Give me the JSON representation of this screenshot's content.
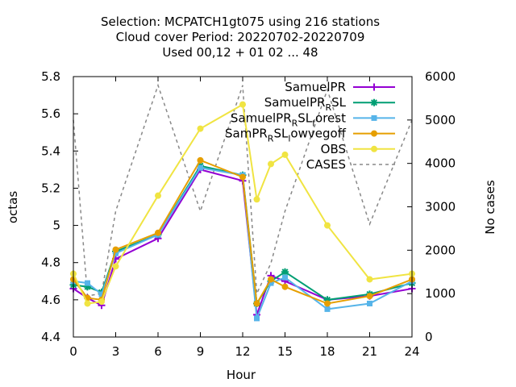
{
  "chart_data": {
    "type": "line",
    "title_lines": [
      "Selection: MCPATCH1gt075 using   216 stations",
      "Cloud cover   Period: 20220702-20220709",
      "Used  00,12  + 01 02 ... 48"
    ],
    "xlabel": "Hour",
    "ylabel": "octas",
    "y2label": "No cases",
    "xlim": [
      0,
      24
    ],
    "ylim": [
      4.4,
      5.8
    ],
    "y2lim": [
      0,
      6000
    ],
    "xticks": [
      "0",
      "3",
      "6",
      "9",
      "12",
      "15",
      "18",
      "21",
      "24"
    ],
    "yticks": [
      "4.4",
      "4.6",
      "4.8",
      "5",
      "5.2",
      "5.4",
      "5.6",
      "5.8"
    ],
    "y2ticks": [
      "0",
      "1000",
      "2000",
      "3000",
      "4000",
      "5000",
      "6000"
    ],
    "legend_position": "top-right",
    "series": [
      {
        "name": "SamuelPR",
        "legend": {
          "base": "SamuelPR",
          "parts": []
        },
        "color": "#9400d3",
        "marker": "plus",
        "x": [
          0,
          1,
          2,
          3,
          6,
          9,
          12,
          13,
          14,
          15,
          18,
          21,
          24
        ],
        "y": [
          4.66,
          4.61,
          4.57,
          4.82,
          4.93,
          5.3,
          5.24,
          4.52,
          4.73,
          4.7,
          4.6,
          4.62,
          4.66
        ]
      },
      {
        "name": "SamuelPR_RSL",
        "legend": {
          "base": "SamuelPR",
          "parts": [
            {
              "sub": "R"
            },
            {
              "text": "SL"
            }
          ]
        },
        "color": "#009e73",
        "marker": "star",
        "x": [
          0,
          1,
          2,
          3,
          6,
          9,
          12,
          13,
          14,
          15,
          18,
          21,
          24
        ],
        "y": [
          4.68,
          4.67,
          4.64,
          4.86,
          4.95,
          5.32,
          5.27,
          4.58,
          4.7,
          4.75,
          4.6,
          4.63,
          4.69
        ]
      },
      {
        "name": "SamuelPR_RSL_forest",
        "legend": {
          "base": "SamuelPR",
          "parts": [
            {
              "sub": "R"
            },
            {
              "text": "SL"
            },
            {
              "sub": "f"
            },
            {
              "text": "orest"
            }
          ]
        },
        "color": "#56b4e9",
        "marker": "square",
        "x": [
          0,
          1,
          2,
          3,
          6,
          9,
          12,
          13,
          14,
          15,
          18,
          21,
          24
        ],
        "y": [
          4.7,
          4.69,
          4.63,
          4.85,
          4.95,
          5.31,
          5.27,
          4.5,
          4.69,
          4.72,
          4.55,
          4.58,
          4.7
        ]
      },
      {
        "name": "SamPR_RSL_lowvegoff",
        "legend": {
          "base": "SamPR",
          "parts": [
            {
              "sub": "R"
            },
            {
              "text": "SL"
            },
            {
              "sub": "l"
            },
            {
              "text": "owvegoff"
            }
          ]
        },
        "color": "#e69f00",
        "marker": "circle",
        "x": [
          0,
          1,
          2,
          3,
          6,
          9,
          12,
          13,
          14,
          15,
          18,
          21,
          24
        ],
        "y": [
          4.71,
          4.61,
          4.6,
          4.87,
          4.96,
          5.35,
          5.26,
          4.58,
          4.71,
          4.67,
          4.58,
          4.62,
          4.71
        ]
      },
      {
        "name": "OBS",
        "legend": {
          "base": "OBS",
          "parts": []
        },
        "color": "#f0e442",
        "marker": "circle",
        "x": [
          0,
          1,
          2,
          3,
          6,
          9,
          12,
          13,
          14,
          15,
          18,
          21,
          24
        ],
        "y": [
          4.74,
          4.58,
          4.59,
          4.78,
          5.16,
          5.52,
          5.65,
          5.14,
          5.33,
          5.38,
          5.0,
          4.71,
          4.74
        ]
      },
      {
        "name": "CASES",
        "legend": {
          "base": "CASES",
          "parts": []
        },
        "color": "#888888",
        "dashed": true,
        "axis": "y2",
        "x": [
          0,
          1,
          2,
          3,
          6,
          9,
          12,
          13,
          14,
          15,
          18,
          21,
          24
        ],
        "y": [
          5000,
          950,
          1000,
          2900,
          5800,
          2900,
          5800,
          1000,
          1700,
          2900,
          5700,
          2600,
          5000
        ]
      }
    ]
  }
}
